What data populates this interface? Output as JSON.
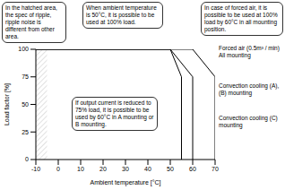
{
  "chart_data": {
    "type": "line",
    "x_label": "Ambient temperature [°C]",
    "y_label": "Load factor [%]",
    "xlim": [
      -10,
      70
    ],
    "xticks": [
      -10,
      0,
      10,
      20,
      30,
      40,
      50,
      60,
      70
    ],
    "ylim": [
      0,
      100
    ],
    "yticks": [
      0,
      25,
      50,
      75,
      100
    ],
    "grid": false,
    "hatched_area": [
      -10,
      -5
    ],
    "series": [
      {
        "name": "Forced air (0.5m³ / min) All mounting",
        "color": "#000000",
        "x": [
          -10,
          60,
          70,
          70
        ],
        "values": [
          100,
          100,
          75,
          0
        ]
      },
      {
        "name": "Convection cooling (A), (B) mounting",
        "color": "#000000",
        "x": [
          -10,
          50,
          60,
          60
        ],
        "values": [
          100,
          100,
          75,
          0
        ]
      },
      {
        "name": "Convection cooling (C) mounting",
        "color": "#000000",
        "x": [
          -10,
          50,
          55,
          55
        ],
        "values": [
          100,
          100,
          75,
          0
        ]
      }
    ],
    "annotations": [
      "In the hatched area, the spec of ripple, ripple noise is different from other area.",
      "When ambient temperature is 50°C, it is possible to be used at 100% load.",
      "In case of forced air, it is possible to be used at 100% load by 60°C in all mounting position.",
      "If output current is reduced to 75% load, it is possible to be used by 60°C in A mounting or B mounting."
    ]
  }
}
